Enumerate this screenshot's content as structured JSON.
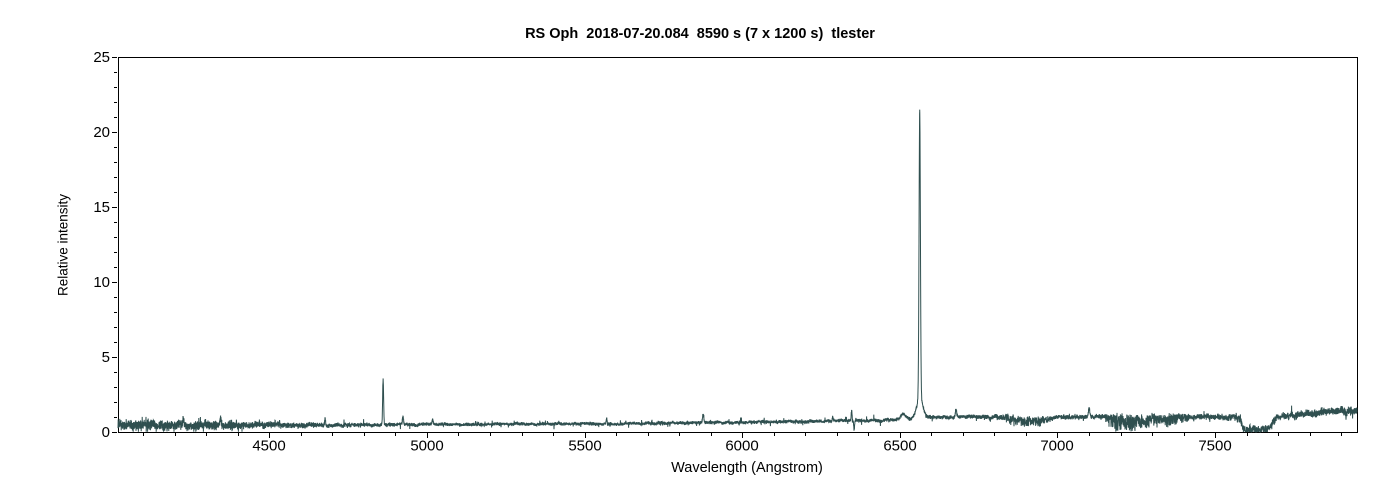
{
  "chart_data": {
    "type": "line",
    "title": "RS Oph  2018-07-20.084  8590 s (7 x 1200 s)  tlester",
    "xlabel": "Wavelength (Angstrom)",
    "ylabel": "Relative intensity",
    "xlim": [
      4020,
      7950
    ],
    "ylim": [
      0,
      25
    ],
    "xticks": [
      4500,
      5000,
      5500,
      6000,
      6500,
      7000,
      7500
    ],
    "xminor_step": 100,
    "yticks": [
      0,
      5,
      10,
      15,
      20,
      25
    ],
    "yminor_step": 1,
    "line_color": "#2F4F4F",
    "axis_color": "#000000",
    "continuum": [
      [
        4020,
        0.55
      ],
      [
        4300,
        0.5
      ],
      [
        4700,
        0.48
      ],
      [
        5000,
        0.52
      ],
      [
        5600,
        0.56
      ],
      [
        6000,
        0.66
      ],
      [
        6280,
        0.74
      ],
      [
        6450,
        0.8
      ],
      [
        6540,
        0.9
      ],
      [
        6600,
        1.02
      ],
      [
        6840,
        1.02
      ],
      [
        6870,
        0.9
      ],
      [
        6900,
        0.85
      ],
      [
        6950,
        0.95
      ],
      [
        7000,
        1.02
      ],
      [
        7160,
        1.05
      ],
      [
        7200,
        1.0
      ],
      [
        7340,
        1.0
      ],
      [
        7400,
        1.08
      ],
      [
        7580,
        1.05
      ],
      [
        7587,
        0.45
      ],
      [
        7593,
        0.25
      ],
      [
        7664,
        0.25
      ],
      [
        7676,
        0.55
      ],
      [
        7694,
        1.02
      ],
      [
        7715,
        1.12
      ],
      [
        7800,
        1.3
      ],
      [
        7900,
        1.45
      ],
      [
        7950,
        1.45
      ]
    ],
    "noise_amp": [
      [
        4020,
        0.3
      ],
      [
        4300,
        0.26
      ],
      [
        4500,
        0.2
      ],
      [
        4750,
        0.12
      ],
      [
        5000,
        0.11
      ],
      [
        5600,
        0.1
      ],
      [
        6200,
        0.11
      ],
      [
        6700,
        0.12
      ],
      [
        6860,
        0.15
      ],
      [
        7000,
        0.13
      ],
      [
        7160,
        0.15
      ],
      [
        7210,
        0.2
      ],
      [
        7340,
        0.2
      ],
      [
        7420,
        0.15
      ],
      [
        7570,
        0.15
      ],
      [
        7620,
        0.18
      ],
      [
        7700,
        0.18
      ],
      [
        7770,
        0.2
      ],
      [
        7950,
        0.24
      ]
    ],
    "noise_down": [
      [
        4020,
        0.18
      ],
      [
        4450,
        0.12
      ],
      [
        5000,
        0.04
      ],
      [
        6800,
        0.05
      ],
      [
        6862,
        0.5
      ],
      [
        6950,
        0.45
      ],
      [
        6990,
        0.06
      ],
      [
        7150,
        0.08
      ],
      [
        7165,
        0.9
      ],
      [
        7255,
        0.85
      ],
      [
        7290,
        0.6
      ],
      [
        7340,
        0.55
      ],
      [
        7400,
        0.4
      ],
      [
        7435,
        0.15
      ],
      [
        7460,
        0.12
      ],
      [
        7540,
        0.2
      ],
      [
        7585,
        0.4
      ],
      [
        7660,
        0.4
      ],
      [
        7685,
        0.25
      ],
      [
        7720,
        0.15
      ],
      [
        7950,
        0.18
      ]
    ],
    "peaks": [
      {
        "center": 4227,
        "height": 0.45,
        "sigma": 2
      },
      {
        "center": 4345,
        "height": 0.5,
        "sigma": 2.5
      },
      {
        "center": 4677,
        "height": 0.45,
        "sigma": 2
      },
      {
        "center": 4861,
        "height": 3.05,
        "sigma": 2.2
      },
      {
        "center": 4924,
        "height": 0.5,
        "sigma": 2.5
      },
      {
        "center": 5018,
        "height": 0.3,
        "sigma": 2.5
      },
      {
        "center": 5570,
        "height": 0.35,
        "sigma": 2
      },
      {
        "center": 5876,
        "height": 0.55,
        "sigma": 3
      },
      {
        "center": 6287,
        "height": 0.3,
        "sigma": 2
      },
      {
        "center": 6347,
        "height": 0.65,
        "sigma": 2
      },
      {
        "center": 6510,
        "height": 0.35,
        "sigma": 10
      },
      {
        "center": 6563,
        "height": 19.2,
        "sigma": 3
      },
      {
        "center": 6563,
        "height": 1.3,
        "sigma": 14
      },
      {
        "center": 6678,
        "height": 0.5,
        "sigma": 3
      },
      {
        "center": 7100,
        "height": 0.6,
        "sigma": 3
      }
    ],
    "dips": [
      {
        "center": 6355,
        "depth": 0.6,
        "sigma": 2
      }
    ]
  }
}
